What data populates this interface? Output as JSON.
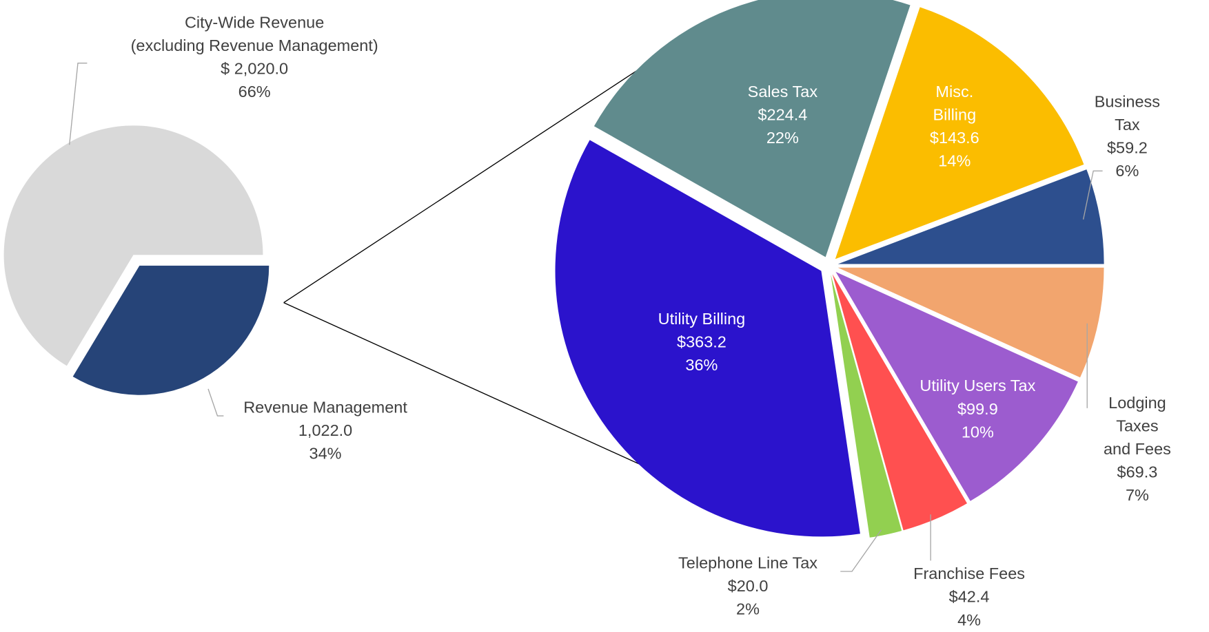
{
  "chart_data": [
    {
      "type": "pie",
      "categories": [
        "City-Wide Revenue\n(excluding Revenue Management)",
        "Revenue Management"
      ],
      "values": [
        2020,
        1022
      ],
      "value_labels": [
        "$ 2,020.0",
        "1,022.0"
      ],
      "percents": [
        66,
        34
      ],
      "percent_labels": [
        "66%",
        "34%"
      ],
      "colors": [
        "#d9d9d9",
        "#264478"
      ]
    },
    {
      "type": "pie",
      "categories": [
        "Lodging Taxes\nand Fees",
        "Utility Users Tax",
        "Franchise Fees",
        "Telephone Line Tax",
        "Utility Billing",
        "Sales Tax",
        "Misc.\nBilling",
        "Business Tax"
      ],
      "values": [
        69.3,
        99.9,
        42.4,
        20.0,
        363.2,
        224.4,
        143.6,
        59.2
      ],
      "value_labels": [
        "$69.3",
        "$99.9",
        "$42.4",
        "$20.0",
        "$363.2",
        "$224.4",
        "$143.6",
        "$59.2"
      ],
      "percents": [
        7,
        10,
        4,
        2,
        36,
        22,
        14,
        6
      ],
      "percent_labels": [
        "7%",
        "10%",
        "4%",
        "2%",
        "36%",
        "22%",
        "14%",
        "6%"
      ],
      "colors": [
        "#f2a56e",
        "#9c5ccf",
        "#ff5050",
        "#92d050",
        "#2b13cc",
        "#608b8d",
        "#fbbd00",
        "#2d4f8e"
      ]
    }
  ]
}
